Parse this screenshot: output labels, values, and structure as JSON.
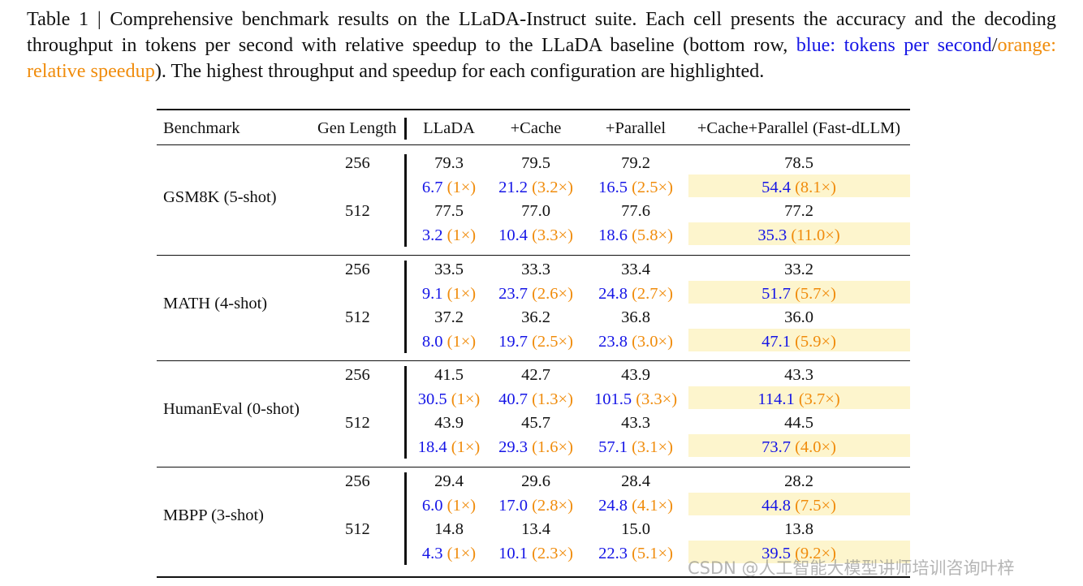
{
  "caption": {
    "part1": "Table 1 | Comprehensive benchmark results on the LLaDA-Instruct suite. Each cell presents the accuracy and the decoding throughput in tokens per second with relative speedup to the LLaDA baseline (bottom row, ",
    "blue_text": "blue: tokens per second",
    "slash": "/",
    "orange_text": "orange: relative speedup",
    "part2": "). The highest throughput and speedup for each configuration are highlighted."
  },
  "colors": {
    "blue": "#1515e6",
    "orange": "#f08c0c",
    "highlight": "#fdf5cd"
  },
  "table": {
    "headers": [
      "Benchmark",
      "Gen Length",
      "LLaDA",
      "+Cache",
      "+Parallel",
      "+Cache+Parallel (Fast-dLLM)"
    ],
    "groups": [
      {
        "name": "GSM8K (5-shot)",
        "rows": [
          {
            "len": "256",
            "acc": [
              "79.3",
              "79.5",
              "79.2",
              "78.5"
            ],
            "tps": [
              "6.7",
              "21.2",
              "16.5",
              "54.4"
            ],
            "speedup": [
              "(1×)",
              "(3.2×)",
              "(2.5×)",
              "(8.1×)"
            ]
          },
          {
            "len": "512",
            "acc": [
              "77.5",
              "77.0",
              "77.6",
              "77.2"
            ],
            "tps": [
              "3.2",
              "10.4",
              "18.6",
              "35.3"
            ],
            "speedup": [
              "(1×)",
              "(3.3×)",
              "(5.8×)",
              "(11.0×)"
            ]
          }
        ]
      },
      {
        "name": "MATH (4-shot)",
        "rows": [
          {
            "len": "256",
            "acc": [
              "33.5",
              "33.3",
              "33.4",
              "33.2"
            ],
            "tps": [
              "9.1",
              "23.7",
              "24.8",
              "51.7"
            ],
            "speedup": [
              "(1×)",
              "(2.6×)",
              "(2.7×)",
              "(5.7×)"
            ]
          },
          {
            "len": "512",
            "acc": [
              "37.2",
              "36.2",
              "36.8",
              "36.0"
            ],
            "tps": [
              "8.0",
              "19.7",
              "23.8",
              "47.1"
            ],
            "speedup": [
              "(1×)",
              "(2.5×)",
              "(3.0×)",
              "(5.9×)"
            ]
          }
        ]
      },
      {
        "name": "HumanEval (0-shot)",
        "rows": [
          {
            "len": "256",
            "acc": [
              "41.5",
              "42.7",
              "43.9",
              "43.3"
            ],
            "tps": [
              "30.5",
              "40.7",
              "101.5",
              "114.1"
            ],
            "speedup": [
              "(1×)",
              "(1.3×)",
              "(3.3×)",
              "(3.7×)"
            ]
          },
          {
            "len": "512",
            "acc": [
              "43.9",
              "45.7",
              "43.3",
              "44.5"
            ],
            "tps": [
              "18.4",
              "29.3",
              "57.1",
              "73.7"
            ],
            "speedup": [
              "(1×)",
              "(1.6×)",
              "(3.1×)",
              "(4.0×)"
            ]
          }
        ]
      },
      {
        "name": "MBPP (3-shot)",
        "rows": [
          {
            "len": "256",
            "acc": [
              "29.4",
              "29.6",
              "28.4",
              "28.2"
            ],
            "tps": [
              "6.0",
              "17.0",
              "24.8",
              "44.8"
            ],
            "speedup": [
              "(1×)",
              "(2.8×)",
              "(4.1×)",
              "(7.5×)"
            ]
          },
          {
            "len": "512",
            "acc": [
              "14.8",
              "13.4",
              "15.0",
              "13.8"
            ],
            "tps": [
              "4.3",
              "10.1",
              "22.3",
              "39.5"
            ],
            "speedup": [
              "(1×)",
              "(2.3×)",
              "(5.1×)",
              "(9.2×)"
            ]
          }
        ]
      }
    ]
  },
  "watermark": "CSDN @人工智能大模型讲师培训咨询叶梓"
}
